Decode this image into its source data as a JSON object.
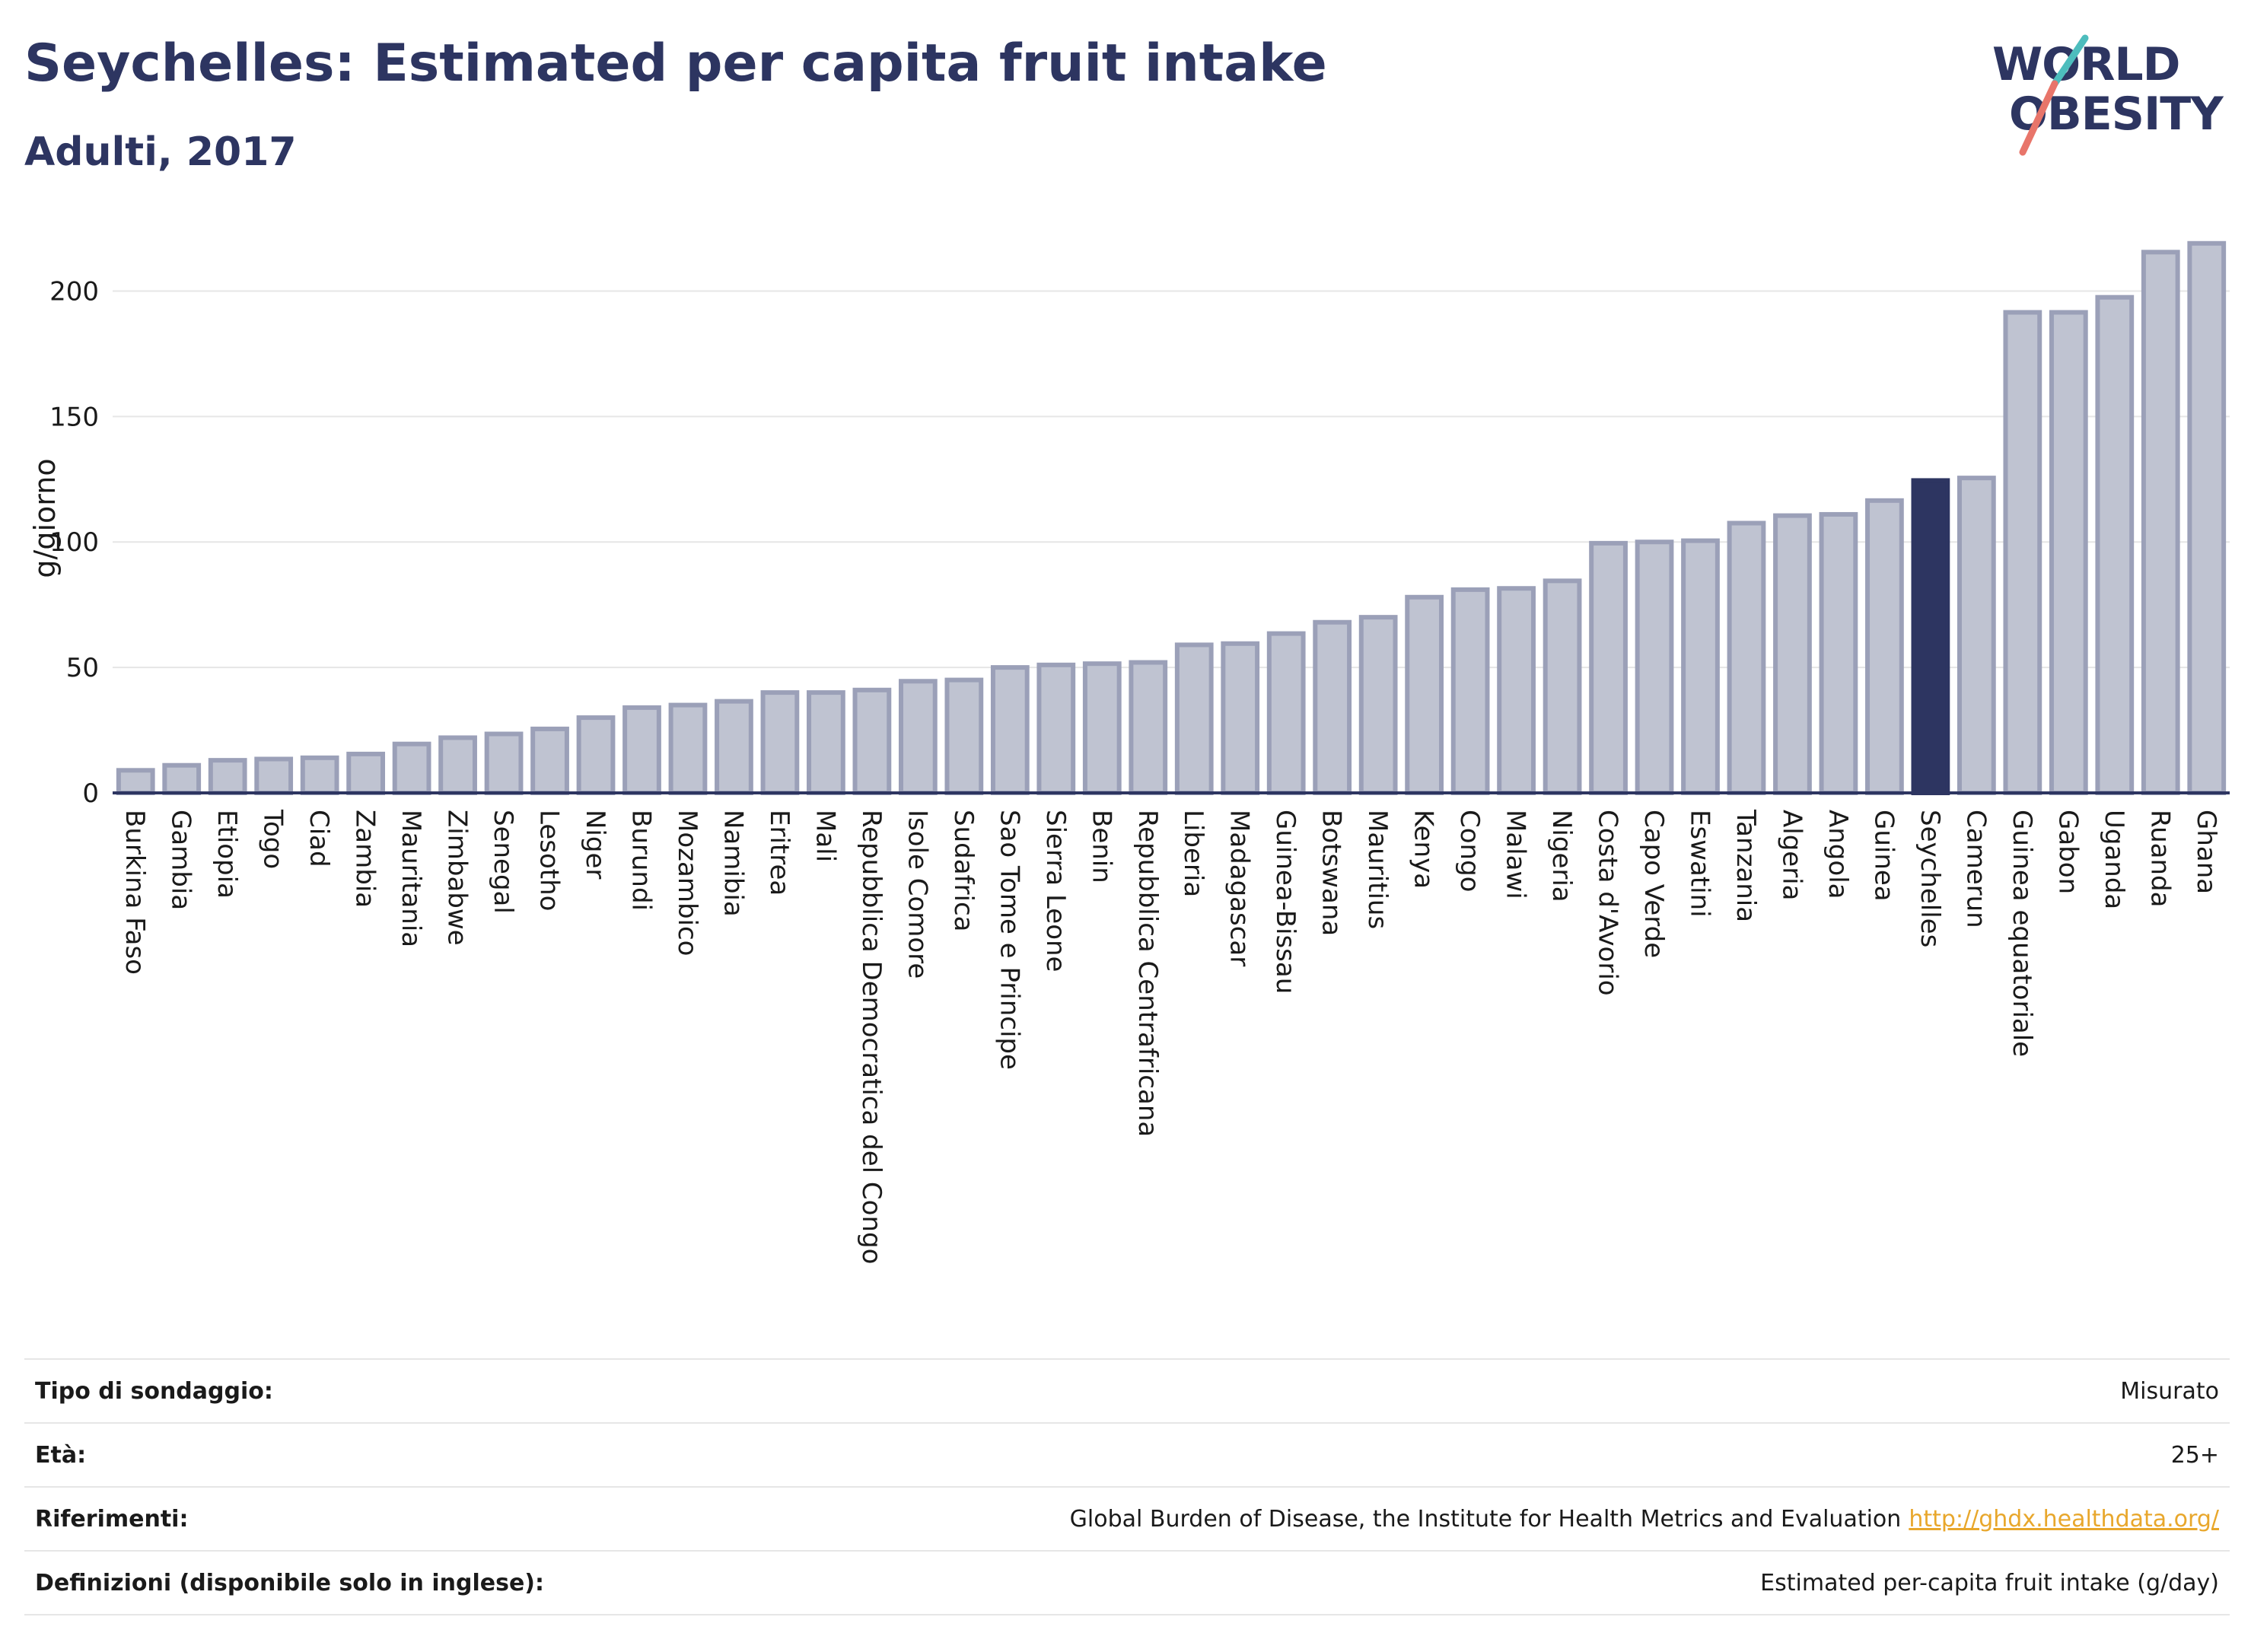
{
  "header": {
    "title": "Seychelles: Estimated per capita fruit intake",
    "subtitle": "Adulti, 2017"
  },
  "logo": {
    "line1": "WORLD",
    "line2": "OBESITY",
    "brand_color": "#2d3561",
    "accent_colors": [
      "#4dbdbd",
      "#e8756a"
    ]
  },
  "colors": {
    "bar_default": "#bfc3d1",
    "bar_stroke": "#9ba0b8",
    "bar_highlight": "#2d3561",
    "grid": "#e6e6e6",
    "axis": "#2d3561"
  },
  "chart_data": {
    "type": "bar",
    "ylabel": "g/giorno",
    "xlabel": "",
    "ylim": [
      0,
      225
    ],
    "yticks": [
      0,
      50,
      100,
      150,
      200
    ],
    "grid": true,
    "highlight": "Seychelles",
    "categories": [
      "Burkina Faso",
      "Gambia",
      "Etiopia",
      "Togo",
      "Ciad",
      "Zambia",
      "Mauritania",
      "Zimbabwe",
      "Senegal",
      "Lesotho",
      "Niger",
      "Burundi",
      "Mozambico",
      "Namibia",
      "Eritrea",
      "Mali",
      "Repubblica Democratica del Congo",
      "Isole Comore",
      "Sudafrica",
      "Sao Tome e Principe",
      "Sierra Leone",
      "Benin",
      "Repubblica Centrafricana",
      "Liberia",
      "Madagascar",
      "Guinea-Bissau",
      "Botswana",
      "Mauritius",
      "Kenya",
      "Congo",
      "Malawi",
      "Nigeria",
      "Costa d'Avorio",
      "Capo Verde",
      "Eswatini",
      "Tanzania",
      "Algeria",
      "Angola",
      "Guinea",
      "Seychelles",
      "Camerun",
      "Guinea equatoriale",
      "Gabon",
      "Uganda",
      "Ruanda",
      "Ghana"
    ],
    "values": [
      9,
      11,
      13,
      13.5,
      14,
      15.5,
      19.5,
      22,
      23.5,
      25.5,
      30,
      34,
      35,
      36.5,
      40,
      40,
      41,
      44.5,
      45,
      50,
      51,
      51.5,
      52,
      59,
      59.5,
      63.5,
      68,
      70,
      78,
      81,
      81.5,
      84.5,
      99.5,
      100,
      100.5,
      107.5,
      110.5,
      111,
      116.5,
      124.5,
      125.5,
      191.5,
      191.5,
      197.5,
      215.5,
      219
    ]
  },
  "info": [
    {
      "label": "Tipo di sondaggio:",
      "value": "Misurato"
    },
    {
      "label": "Età:",
      "value": "25+"
    },
    {
      "label": "Riferimenti:",
      "value": "Global Burden of Disease, the Institute for Health Metrics and Evaluation",
      "link": "http://ghdx.healthdata.org/"
    },
    {
      "label": "Definizioni (disponibile solo in inglese):",
      "value": "Estimated per-capita fruit intake (g/day)"
    }
  ]
}
